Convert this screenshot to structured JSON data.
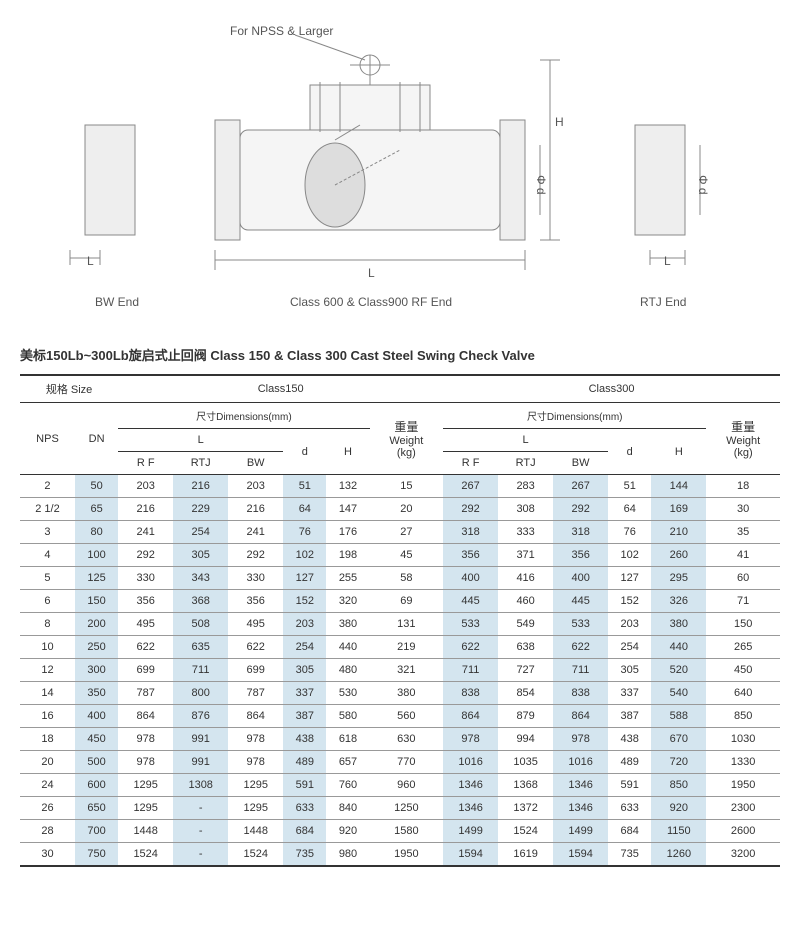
{
  "diagram": {
    "note": "For NPSS & Larger",
    "label_bw": "BW End",
    "label_center": "Class 600 & Class900 RF End",
    "label_rtj": "RTJ End",
    "dim_L": "L",
    "dim_H": "H",
    "dim_d": "Φ d"
  },
  "title": "美标150Lb~300Lb旋启式止回阀 Class 150 & Class 300 Cast Steel Swing Check Valve",
  "headers": {
    "size": "规格 Size",
    "c150": "Class150",
    "c300": "Class300",
    "dims": "尺寸Dimensions(mm)",
    "weight_cn": "重量",
    "weight_en": "Weight",
    "weight_unit": "(kg)",
    "nps": "NPS",
    "dn": "DN",
    "L": "L",
    "d": "d",
    "H": "H",
    "RF": "R F",
    "RTJ": "RTJ",
    "BW": "BW"
  },
  "rows": [
    {
      "nps": "2",
      "dn": "50",
      "c150": {
        "rf": "203",
        "rtj": "216",
        "bw": "203",
        "d": "51",
        "h": "132",
        "w": "15"
      },
      "c300": {
        "rf": "267",
        "rtj": "283",
        "bw": "267",
        "d": "51",
        "h": "144",
        "w": "18"
      }
    },
    {
      "nps": "2 1/2",
      "dn": "65",
      "c150": {
        "rf": "216",
        "rtj": "229",
        "bw": "216",
        "d": "64",
        "h": "147",
        "w": "20"
      },
      "c300": {
        "rf": "292",
        "rtj": "308",
        "bw": "292",
        "d": "64",
        "h": "169",
        "w": "30"
      }
    },
    {
      "nps": "3",
      "dn": "80",
      "c150": {
        "rf": "241",
        "rtj": "254",
        "bw": "241",
        "d": "76",
        "h": "176",
        "w": "27"
      },
      "c300": {
        "rf": "318",
        "rtj": "333",
        "bw": "318",
        "d": "76",
        "h": "210",
        "w": "35"
      }
    },
    {
      "nps": "4",
      "dn": "100",
      "c150": {
        "rf": "292",
        "rtj": "305",
        "bw": "292",
        "d": "102",
        "h": "198",
        "w": "45"
      },
      "c300": {
        "rf": "356",
        "rtj": "371",
        "bw": "356",
        "d": "102",
        "h": "260",
        "w": "41"
      }
    },
    {
      "nps": "5",
      "dn": "125",
      "c150": {
        "rf": "330",
        "rtj": "343",
        "bw": "330",
        "d": "127",
        "h": "255",
        "w": "58"
      },
      "c300": {
        "rf": "400",
        "rtj": "416",
        "bw": "400",
        "d": "127",
        "h": "295",
        "w": "60"
      }
    },
    {
      "nps": "6",
      "dn": "150",
      "c150": {
        "rf": "356",
        "rtj": "368",
        "bw": "356",
        "d": "152",
        "h": "320",
        "w": "69"
      },
      "c300": {
        "rf": "445",
        "rtj": "460",
        "bw": "445",
        "d": "152",
        "h": "326",
        "w": "71"
      }
    },
    {
      "nps": "8",
      "dn": "200",
      "c150": {
        "rf": "495",
        "rtj": "508",
        "bw": "495",
        "d": "203",
        "h": "380",
        "w": "131"
      },
      "c300": {
        "rf": "533",
        "rtj": "549",
        "bw": "533",
        "d": "203",
        "h": "380",
        "w": "150"
      }
    },
    {
      "nps": "10",
      "dn": "250",
      "c150": {
        "rf": "622",
        "rtj": "635",
        "bw": "622",
        "d": "254",
        "h": "440",
        "w": "219"
      },
      "c300": {
        "rf": "622",
        "rtj": "638",
        "bw": "622",
        "d": "254",
        "h": "440",
        "w": "265"
      }
    },
    {
      "nps": "12",
      "dn": "300",
      "c150": {
        "rf": "699",
        "rtj": "711",
        "bw": "699",
        "d": "305",
        "h": "480",
        "w": "321"
      },
      "c300": {
        "rf": "711",
        "rtj": "727",
        "bw": "711",
        "d": "305",
        "h": "520",
        "w": "450"
      }
    },
    {
      "nps": "14",
      "dn": "350",
      "c150": {
        "rf": "787",
        "rtj": "800",
        "bw": "787",
        "d": "337",
        "h": "530",
        "w": "380"
      },
      "c300": {
        "rf": "838",
        "rtj": "854",
        "bw": "838",
        "d": "337",
        "h": "540",
        "w": "640"
      }
    },
    {
      "nps": "16",
      "dn": "400",
      "c150": {
        "rf": "864",
        "rtj": "876",
        "bw": "864",
        "d": "387",
        "h": "580",
        "w": "560"
      },
      "c300": {
        "rf": "864",
        "rtj": "879",
        "bw": "864",
        "d": "387",
        "h": "588",
        "w": "850"
      }
    },
    {
      "nps": "18",
      "dn": "450",
      "c150": {
        "rf": "978",
        "rtj": "991",
        "bw": "978",
        "d": "438",
        "h": "618",
        "w": "630"
      },
      "c300": {
        "rf": "978",
        "rtj": "994",
        "bw": "978",
        "d": "438",
        "h": "670",
        "w": "1030"
      }
    },
    {
      "nps": "20",
      "dn": "500",
      "c150": {
        "rf": "978",
        "rtj": "991",
        "bw": "978",
        "d": "489",
        "h": "657",
        "w": "770"
      },
      "c300": {
        "rf": "1016",
        "rtj": "1035",
        "bw": "1016",
        "d": "489",
        "h": "720",
        "w": "1330"
      }
    },
    {
      "nps": "24",
      "dn": "600",
      "c150": {
        "rf": "1295",
        "rtj": "1308",
        "bw": "1295",
        "d": "591",
        "h": "760",
        "w": "960"
      },
      "c300": {
        "rf": "1346",
        "rtj": "1368",
        "bw": "1346",
        "d": "591",
        "h": "850",
        "w": "1950"
      }
    },
    {
      "nps": "26",
      "dn": "650",
      "c150": {
        "rf": "1295",
        "rtj": "-",
        "bw": "1295",
        "d": "633",
        "h": "840",
        "w": "1250"
      },
      "c300": {
        "rf": "1346",
        "rtj": "1372",
        "bw": "1346",
        "d": "633",
        "h": "920",
        "w": "2300"
      }
    },
    {
      "nps": "28",
      "dn": "700",
      "c150": {
        "rf": "1448",
        "rtj": "-",
        "bw": "1448",
        "d": "684",
        "h": "920",
        "w": "1580"
      },
      "c300": {
        "rf": "1499",
        "rtj": "1524",
        "bw": "1499",
        "d": "684",
        "h": "1150",
        "w": "2600"
      }
    },
    {
      "nps": "30",
      "dn": "750",
      "c150": {
        "rf": "1524",
        "rtj": "-",
        "bw": "1524",
        "d": "735",
        "h": "980",
        "w": "1950"
      },
      "c300": {
        "rf": "1594",
        "rtj": "1619",
        "bw": "1594",
        "d": "735",
        "h": "1260",
        "w": "3200"
      }
    }
  ],
  "alt_cols": [
    1,
    3,
    5,
    8,
    10,
    12
  ],
  "colors": {
    "alt_bg": "#d4e5ef",
    "border": "#999",
    "border_dark": "#333"
  }
}
